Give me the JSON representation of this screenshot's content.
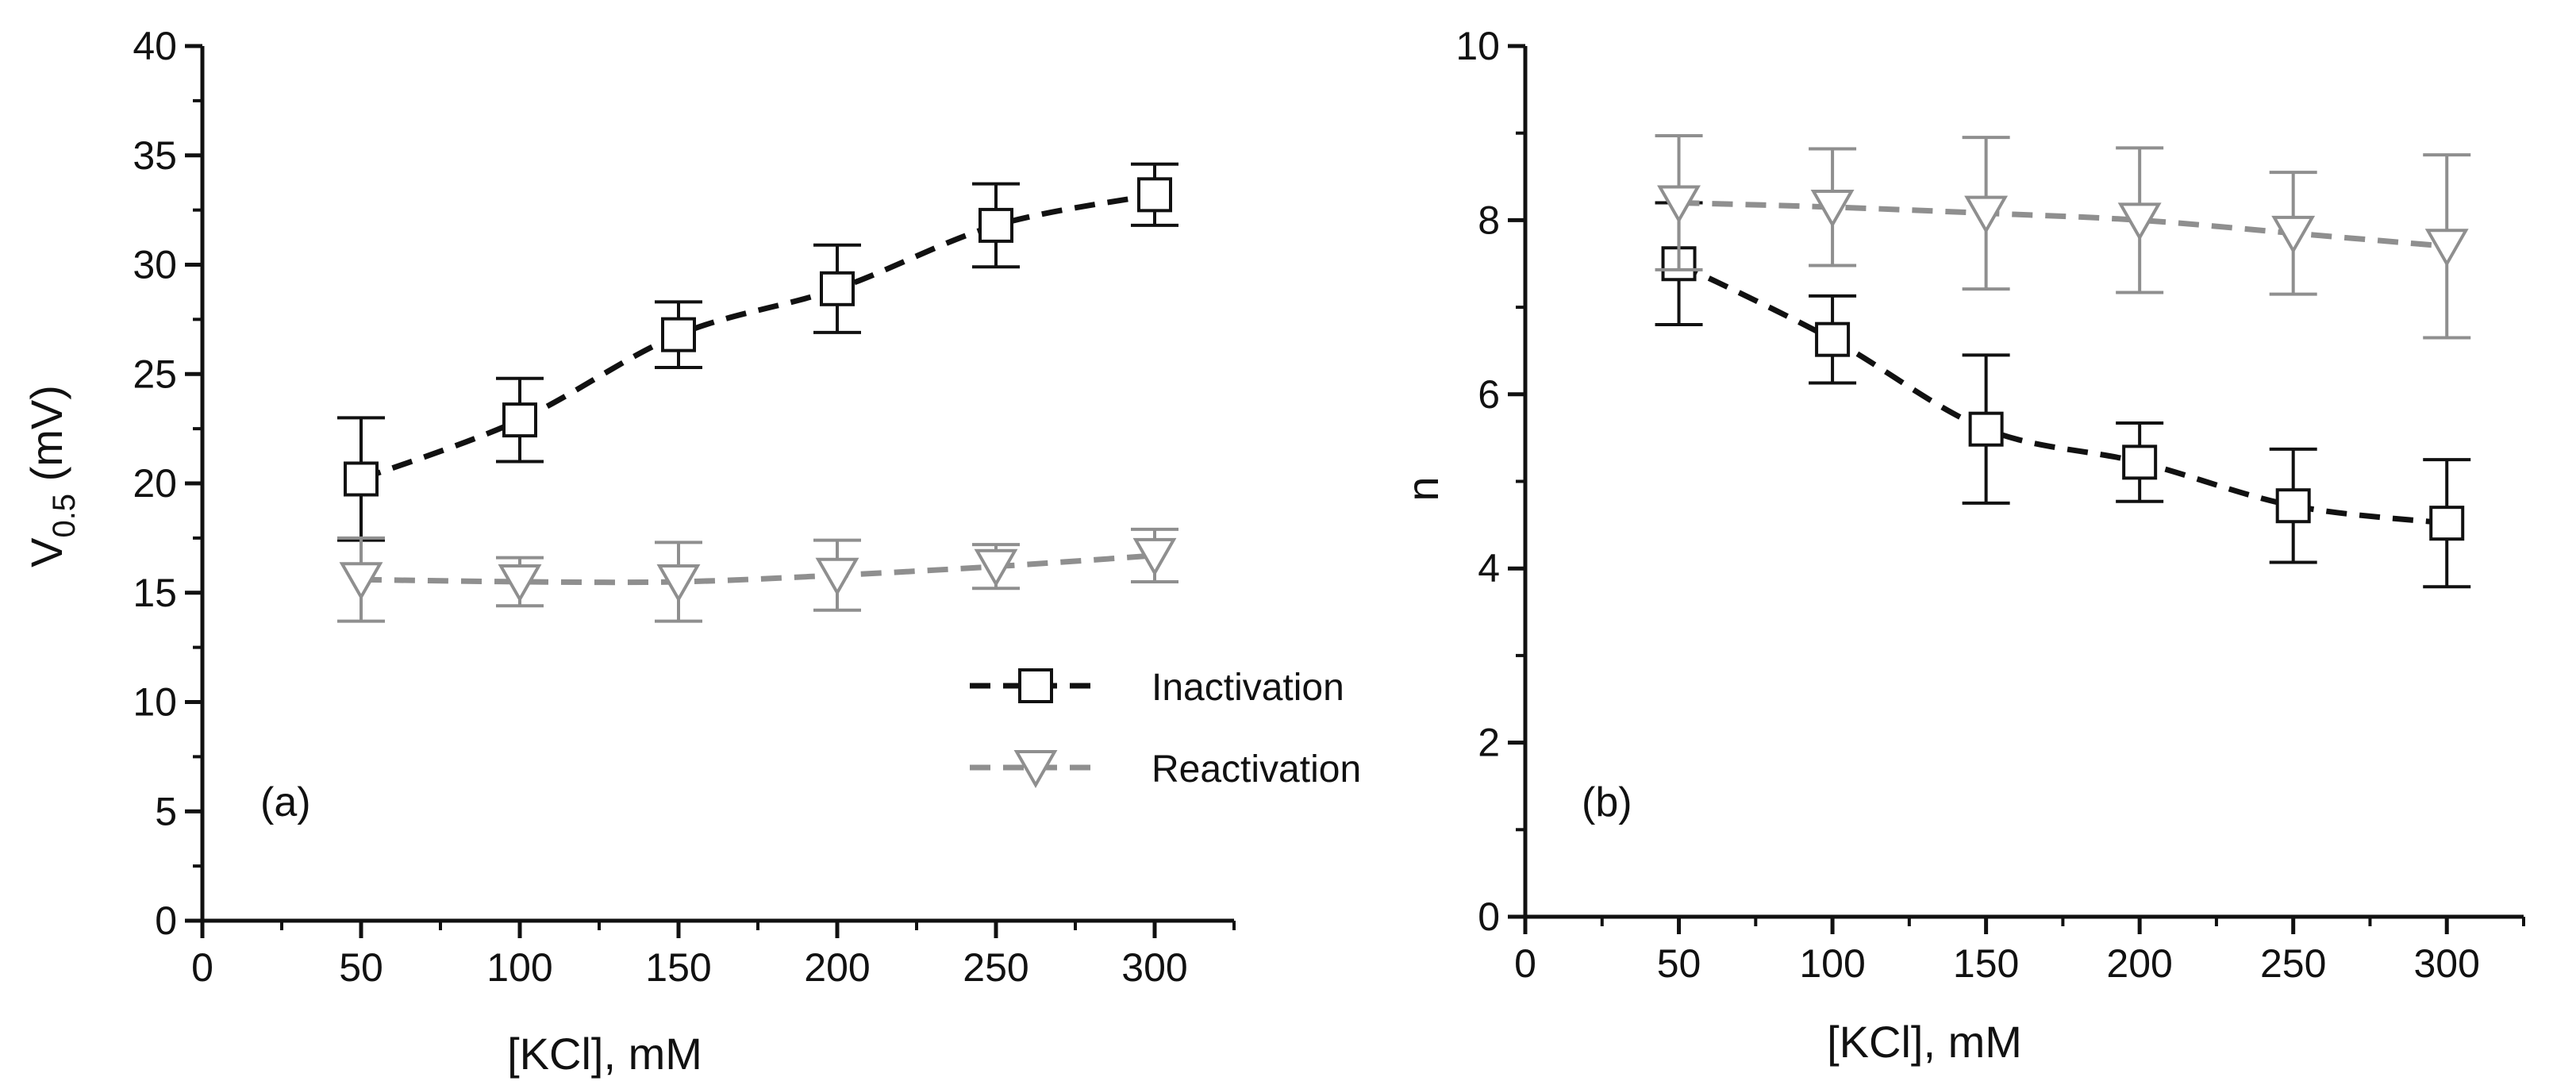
{
  "colors": {
    "axis": "#111111",
    "inactivation": "#111111",
    "reactivation": "#8f8f8f",
    "background": "#ffffff"
  },
  "legend": {
    "items": [
      {
        "label": "Inactivation",
        "series": "inactivation",
        "marker": "square-icon"
      },
      {
        "label": "Reactivation",
        "series": "reactivation",
        "marker": "triangle-down-icon"
      }
    ]
  },
  "chart_data": [
    {
      "type": "scatter",
      "panel": "(a)",
      "xlabel": "[KCl], mM",
      "ylabel": "V",
      "ylabel_subscript": "0.5",
      "ylabel_unit": " (mV)",
      "xlim": [
        0,
        325
      ],
      "ylim": [
        0,
        40
      ],
      "xticks": [
        0,
        50,
        100,
        150,
        200,
        250,
        300
      ],
      "yticks": [
        0,
        5,
        10,
        15,
        20,
        25,
        30,
        35,
        40
      ],
      "legend_position": "lower-right",
      "series": [
        {
          "name": "Inactivation",
          "marker": "square",
          "line": "dashed",
          "x": [
            50,
            100,
            150,
            200,
            250,
            300
          ],
          "y": [
            20.2,
            22.9,
            26.8,
            28.9,
            31.8,
            33.2
          ],
          "yerr": [
            2.8,
            1.9,
            1.5,
            2.0,
            1.9,
            1.4
          ]
        },
        {
          "name": "Reactivation",
          "marker": "triangle-down",
          "line": "dashed",
          "x": [
            50,
            100,
            150,
            200,
            250,
            300
          ],
          "y": [
            15.6,
            15.5,
            15.5,
            15.8,
            16.2,
            16.7
          ],
          "yerr": [
            1.9,
            1.1,
            1.8,
            1.6,
            1.0,
            1.2
          ]
        }
      ]
    },
    {
      "type": "scatter",
      "panel": "(b)",
      "xlabel": "[KCl], mM",
      "ylabel": "n",
      "xlim": [
        0,
        325
      ],
      "ylim": [
        0,
        10
      ],
      "xticks": [
        0,
        50,
        100,
        150,
        200,
        250,
        300
      ],
      "yticks": [
        0,
        2,
        4,
        6,
        8,
        10
      ],
      "series": [
        {
          "name": "Inactivation",
          "marker": "square",
          "line": "dashed",
          "x": [
            50,
            100,
            150,
            200,
            250,
            300
          ],
          "y": [
            7.5,
            6.63,
            5.6,
            5.22,
            4.72,
            4.52
          ],
          "yerr": [
            0.7,
            0.5,
            0.85,
            0.45,
            0.65,
            0.73
          ]
        },
        {
          "name": "Reactivation",
          "marker": "triangle-down",
          "line": "dashed",
          "x": [
            50,
            100,
            150,
            200,
            250,
            300
          ],
          "y": [
            8.2,
            8.15,
            8.08,
            8.0,
            7.85,
            7.7
          ],
          "yerr": [
            0.77,
            0.67,
            0.87,
            0.83,
            0.7,
            1.05
          ]
        }
      ]
    }
  ]
}
